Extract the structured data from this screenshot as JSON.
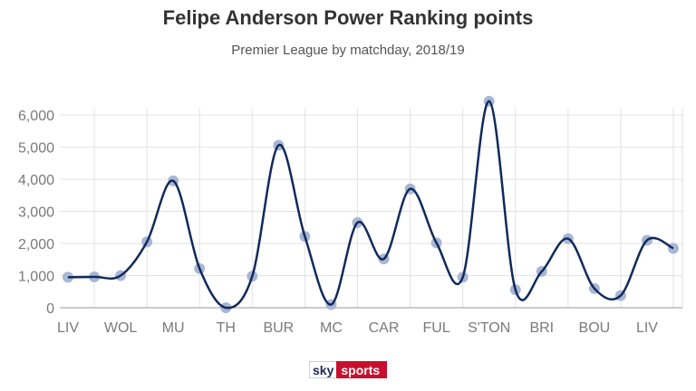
{
  "chart_data": {
    "type": "line",
    "title": "Felipe Anderson Power Ranking points",
    "subtitle": "Premier League by matchday, 2018/19",
    "x_labels": [
      "LIV",
      "WOL",
      "MU",
      "TH",
      "BUR",
      "MC",
      "CAR",
      "FUL",
      "S'TON",
      "BRI",
      "BOU",
      "LIV"
    ],
    "y_ticks": [
      0,
      1000,
      2000,
      3000,
      4000,
      5000,
      6000
    ],
    "y_tick_labels": [
      "0",
      "1,000",
      "2,000",
      "3,000",
      "4,000",
      "5,000",
      "6,000"
    ],
    "ylim": [
      0,
      6200
    ],
    "series": [
      {
        "values": [
          950,
          960,
          1000,
          2050,
          3950,
          1220,
          0,
          980,
          5060,
          2220,
          100,
          2650,
          1520,
          3700,
          2020,
          950,
          6430,
          560,
          1130,
          2150,
          600,
          380,
          2100,
          1850
        ]
      }
    ],
    "grid": true,
    "colors": {
      "line": "#102a5c",
      "marker": "#a9b6d4",
      "grid": "#e2e2e2",
      "axis": "#9a9a9a"
    }
  },
  "branding": {
    "sky": "sky",
    "sports": "sports"
  }
}
